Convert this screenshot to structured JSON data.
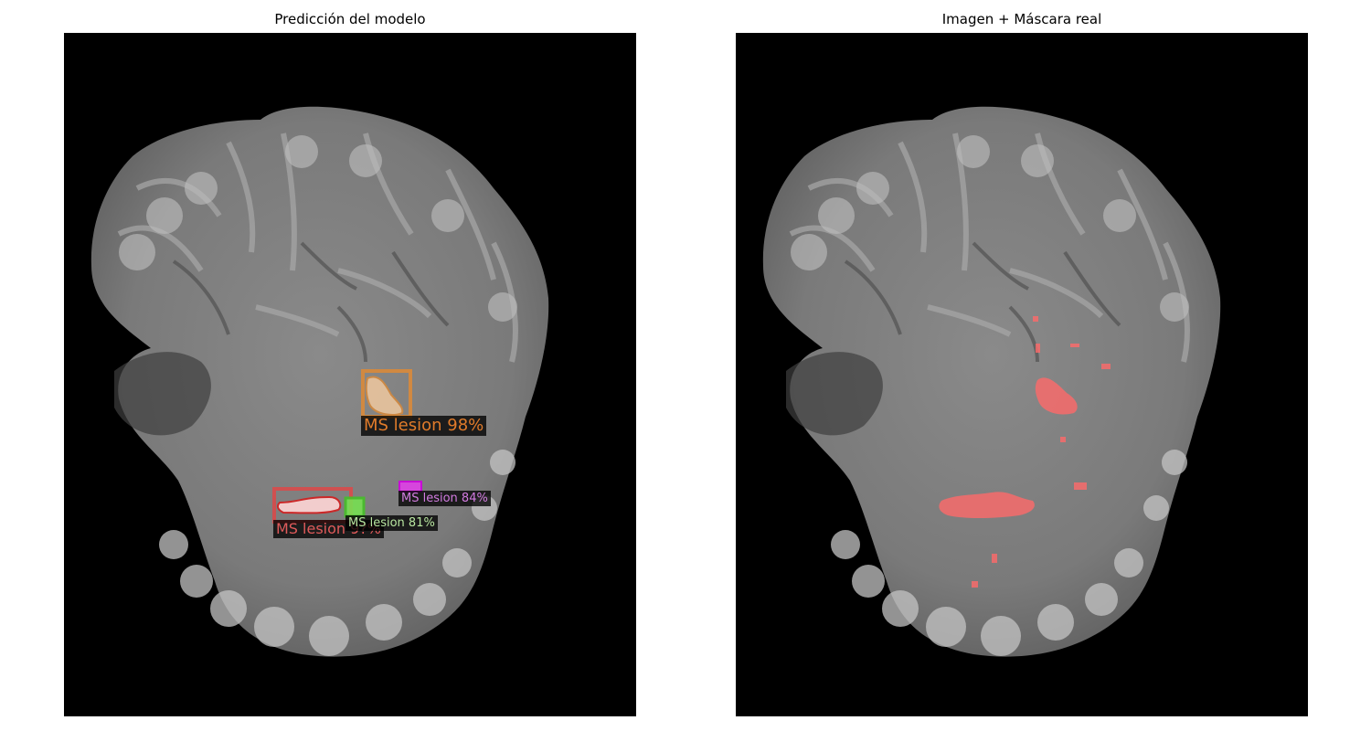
{
  "left_panel": {
    "title": "Predicción del modelo",
    "detections": [
      {
        "label": "MS lesion 98%",
        "color": "#e07b2a"
      },
      {
        "label": "MS lesion 9?%",
        "color": "#e05a5a"
      },
      {
        "label": "MS lesion 84%",
        "color": "#d27be0"
      },
      {
        "label": "MS lesion 81%",
        "color": "#b8e6a0"
      }
    ]
  },
  "right_panel": {
    "title": "Imagen + Máscara real",
    "mask_color": "#ff6a6a"
  }
}
